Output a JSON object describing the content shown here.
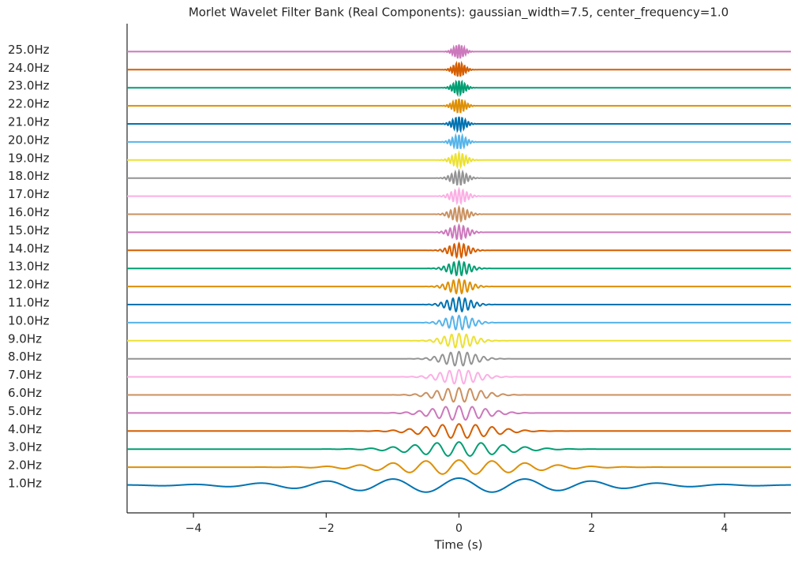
{
  "chart_data": {
    "type": "wavelet",
    "title": "Morlet Wavelet Filter Bank (Real Components): gaussian_width=7.5, center_frequency=1.0",
    "x_label": "Time (s)",
    "gaussian_width": 7.5,
    "center_frequency": 1.0,
    "xlim": [
      -5,
      5
    ],
    "xticks": [
      {
        "value": -4,
        "label": "−4"
      },
      {
        "value": -2,
        "label": "−2"
      },
      0,
      2,
      4
    ],
    "series": [
      {
        "name": "1.0Hz",
        "frequency": 1,
        "color": "#0173b2"
      },
      {
        "name": "2.0Hz",
        "frequency": 2,
        "color": "#de8f05"
      },
      {
        "name": "3.0Hz",
        "frequency": 3,
        "color": "#029e73"
      },
      {
        "name": "4.0Hz",
        "frequency": 4,
        "color": "#d55e00"
      },
      {
        "name": "5.0Hz",
        "frequency": 5,
        "color": "#cc78bc"
      },
      {
        "name": "6.0Hz",
        "frequency": 6,
        "color": "#ca9161"
      },
      {
        "name": "7.0Hz",
        "frequency": 7,
        "color": "#fbafe4"
      },
      {
        "name": "8.0Hz",
        "frequency": 8,
        "color": "#949494"
      },
      {
        "name": "9.0Hz",
        "frequency": 9,
        "color": "#ece133"
      },
      {
        "name": "10.0Hz",
        "frequency": 10,
        "color": "#56b4e9"
      },
      {
        "name": "11.0Hz",
        "frequency": 11,
        "color": "#0173b2"
      },
      {
        "name": "12.0Hz",
        "frequency": 12,
        "color": "#de8f05"
      },
      {
        "name": "13.0Hz",
        "frequency": 13,
        "color": "#029e73"
      },
      {
        "name": "14.0Hz",
        "frequency": 14,
        "color": "#d55e00"
      },
      {
        "name": "15.0Hz",
        "frequency": 15,
        "color": "#cc78bc"
      },
      {
        "name": "16.0Hz",
        "frequency": 16,
        "color": "#ca9161"
      },
      {
        "name": "17.0Hz",
        "frequency": 17,
        "color": "#fbafe4"
      },
      {
        "name": "18.0Hz",
        "frequency": 18,
        "color": "#949494"
      },
      {
        "name": "19.0Hz",
        "frequency": 19,
        "color": "#ece133"
      },
      {
        "name": "20.0Hz",
        "frequency": 20,
        "color": "#56b4e9"
      },
      {
        "name": "21.0Hz",
        "frequency": 21,
        "color": "#0173b2"
      },
      {
        "name": "22.0Hz",
        "frequency": 22,
        "color": "#de8f05"
      },
      {
        "name": "23.0Hz",
        "frequency": 23,
        "color": "#029e73"
      },
      {
        "name": "24.0Hz",
        "frequency": 24,
        "color": "#d55e00"
      },
      {
        "name": "25.0Hz",
        "frequency": 25,
        "color": "#cc78bc"
      }
    ]
  }
}
